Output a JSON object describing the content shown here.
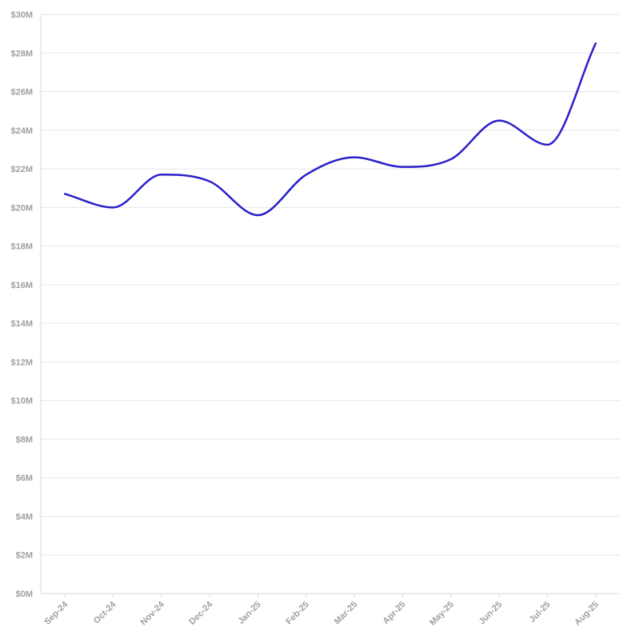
{
  "chart_data": {
    "type": "line",
    "title": "",
    "xlabel": "",
    "ylabel": "",
    "categories": [
      "Sep-24",
      "Oct-24",
      "Nov-24",
      "Dec-24",
      "Jan-25",
      "Feb-25",
      "Mar-25",
      "Apr-25",
      "May-25",
      "Jun-25",
      "Jul-25",
      "Aug-25"
    ],
    "series": [
      {
        "values": [
          20.7,
          20.0,
          21.7,
          21.35,
          19.6,
          21.7,
          22.6,
          22.1,
          22.5,
          24.5,
          23.25,
          28.5
        ],
        "color": "#2b1fc9"
      }
    ],
    "ylim": [
      0,
      30
    ],
    "y_ticks": [
      0,
      2,
      4,
      6,
      8,
      10,
      12,
      14,
      16,
      18,
      20,
      22,
      24,
      26,
      28,
      30
    ],
    "y_tick_labels": [
      "$0M",
      "$2M",
      "$4M",
      "$6M",
      "$8M",
      "$10M",
      "$12M",
      "$14M",
      "$16M",
      "$18M",
      "$20M",
      "$22M",
      "$24M",
      "$26M",
      "$28M",
      "$30M"
    ],
    "grid": true,
    "smooth": true,
    "legend": "none"
  }
}
